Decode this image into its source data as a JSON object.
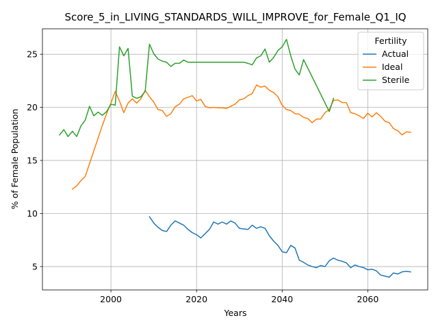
{
  "chart_data": {
    "type": "line",
    "title": "Score_5_in_LIVING_STANDARDS_WILL_IMPROVE_for_Female_Q1_IQ",
    "xlabel": "Years",
    "ylabel": "% of Female Population",
    "xlim": [
      1984,
      2074
    ],
    "ylim": [
      2.8,
      27.4
    ],
    "xticks": [
      2000,
      2020,
      2040,
      2060
    ],
    "yticks": [
      5,
      10,
      15,
      20,
      25
    ],
    "grid": true,
    "legend": {
      "title": "Fertility",
      "placement": "top-right"
    },
    "series": [
      {
        "name": "Actual",
        "color": "#1f77b4",
        "x": [
          2009,
          2010,
          2011,
          2012,
          2013,
          2014,
          2015,
          2016,
          2017,
          2018,
          2019,
          2020,
          2021,
          2022,
          2023,
          2024,
          2025,
          2026,
          2027,
          2028,
          2029,
          2030,
          2031,
          2032,
          2033,
          2034,
          2035,
          2036,
          2037,
          2038,
          2039,
          2040,
          2041,
          2042,
          2043,
          2044,
          2045,
          2046,
          2047,
          2048,
          2049,
          2050,
          2051,
          2052,
          2053,
          2054,
          2055,
          2056,
          2057,
          2058,
          2059,
          2060,
          2061,
          2062,
          2063,
          2064,
          2065,
          2066,
          2067,
          2068,
          2069,
          2070
        ],
        "y": [
          9.7,
          9.1,
          8.7,
          8.4,
          8.3,
          8.9,
          9.3,
          9.1,
          8.9,
          8.5,
          8.2,
          8.0,
          7.7,
          8.1,
          8.5,
          9.2,
          9.0,
          9.2,
          9.0,
          9.3,
          9.1,
          8.6,
          8.55,
          8.5,
          8.9,
          8.6,
          8.75,
          8.6,
          7.9,
          7.4,
          7.0,
          6.4,
          6.3,
          7.0,
          6.75,
          5.6,
          5.4,
          5.15,
          5.0,
          4.9,
          5.1,
          5.0,
          5.55,
          5.8,
          5.6,
          5.5,
          5.35,
          4.9,
          5.15,
          5.0,
          4.9,
          4.7,
          4.75,
          4.6,
          4.2,
          4.1,
          4.0,
          4.4,
          4.3,
          4.5,
          4.55,
          4.5
        ]
      },
      {
        "name": "Ideal",
        "color": "#ff7f0e",
        "x": [
          1991,
          1992,
          1993,
          1994,
          1995,
          1996,
          1997,
          1998,
          1999,
          2000,
          2001,
          2002,
          2003,
          2004,
          2005,
          2006,
          2007,
          2008,
          2009,
          2010,
          2011,
          2012,
          2013,
          2014,
          2015,
          2016,
          2017,
          2018,
          2019,
          2020,
          2021,
          2022,
          2023,
          2024,
          2025,
          2026,
          2027,
          2028,
          2029,
          2030,
          2031,
          2032,
          2033,
          2034,
          2035,
          2036,
          2037,
          2038,
          2039,
          2040,
          2041,
          2042,
          2043,
          2044,
          2045,
          2046,
          2047,
          2048,
          2049,
          2050,
          2051,
          2052,
          2053,
          2054,
          2055,
          2056,
          2057,
          2058,
          2059,
          2060,
          2061,
          2062,
          2063,
          2064,
          2065,
          2066,
          2067,
          2068,
          2069,
          2070
        ],
        "y": [
          12.3,
          12.6,
          13.1,
          13.5,
          14.7,
          15.9,
          17.1,
          18.3,
          19.4,
          20.4,
          21.5,
          20.6,
          19.5,
          20.4,
          20.8,
          20.4,
          20.8,
          21.6,
          21.0,
          20.5,
          19.8,
          19.7,
          19.15,
          19.4,
          20.05,
          20.3,
          20.8,
          20.95,
          21.1,
          20.6,
          20.75,
          20.1,
          19.95,
          20.0,
          19.95,
          19.95,
          19.9,
          20.1,
          20.3,
          20.7,
          20.8,
          21.1,
          21.3,
          22.1,
          21.9,
          22.0,
          21.6,
          21.4,
          21.0,
          20.2,
          19.8,
          19.7,
          19.4,
          19.35,
          19.05,
          18.95,
          18.55,
          18.9,
          18.9,
          19.5,
          19.8,
          20.65,
          20.7,
          20.45,
          20.45,
          19.5,
          19.4,
          19.2,
          18.95,
          19.45,
          19.1,
          19.5,
          19.15,
          18.7,
          18.55,
          18.0,
          17.8,
          17.4,
          17.7,
          17.65
        ]
      },
      {
        "name": "Sterile",
        "color": "#2ca02c",
        "x": [
          1988,
          1989,
          1990,
          1991,
          1992,
          1993,
          1994,
          1995,
          1996,
          1997,
          1998,
          1999,
          2000,
          2001,
          2002,
          2003,
          2004,
          2005,
          2006,
          2007,
          2008,
          2009,
          2010,
          2011,
          2012,
          2013,
          2014,
          2015,
          2016,
          2017,
          2018,
          2019,
          2020,
          2021,
          2022,
          2023,
          2024,
          2025,
          2026,
          2027,
          2028,
          2029,
          2030,
          2031,
          2032,
          2033,
          2034,
          2035,
          2036,
          2037,
          2038,
          2039,
          2040,
          2041,
          2042,
          2043,
          2044,
          2045,
          2051,
          2052
        ],
        "y": [
          17.4,
          17.9,
          17.25,
          17.75,
          17.25,
          18.25,
          18.8,
          20.1,
          19.2,
          19.55,
          19.25,
          19.6,
          20.3,
          20.2,
          25.7,
          24.85,
          25.55,
          21.05,
          20.85,
          21.0,
          21.5,
          25.95,
          25.05,
          24.55,
          24.35,
          24.25,
          23.85,
          24.15,
          24.15,
          24.45,
          24.25,
          24.25,
          24.25,
          24.25,
          24.25,
          24.25,
          24.25,
          24.25,
          24.25,
          24.25,
          24.25,
          24.25,
          24.25,
          24.25,
          24.15,
          24.0,
          24.65,
          24.85,
          25.5,
          24.25,
          24.7,
          25.35,
          25.7,
          26.4,
          24.85,
          23.6,
          23.05,
          24.5,
          19.6,
          20.85
        ]
      }
    ]
  }
}
